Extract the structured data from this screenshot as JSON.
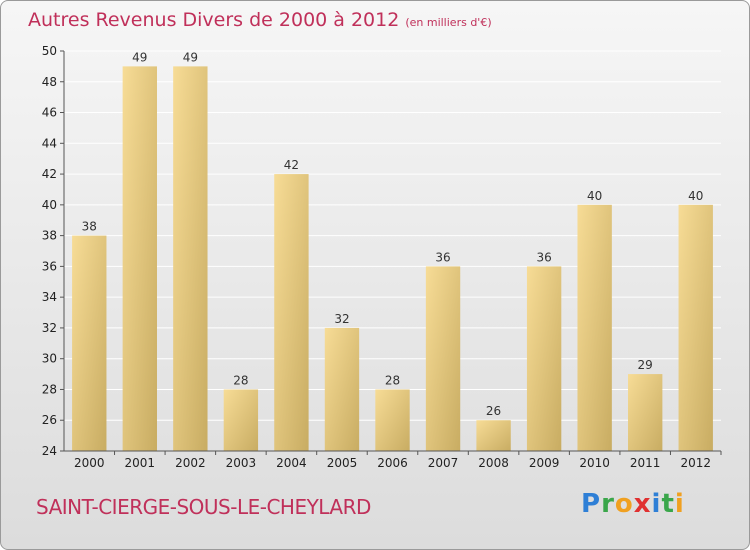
{
  "header": {
    "title": "Autres Revenus Divers de 2000 à 2012",
    "subtitle": "(en milliers d'€)"
  },
  "footer": {
    "commune": "SAINT-CIERGE-SOUS-LE-CHEYLARD",
    "logo_letters": [
      "P",
      "r",
      "o",
      "x",
      "i",
      "t",
      "i"
    ],
    "logo_colors": [
      "#2e7fd6",
      "#3aa64a",
      "#f0a020",
      "#e03030",
      "#2e7fd6",
      "#3aa64a",
      "#f0a020"
    ]
  },
  "colors": {
    "title": "#c0305a",
    "bar_light": "#f7dc96",
    "bar_dark": "#c8ac62",
    "grid": "#ffffff",
    "axis": "#555555"
  },
  "chart_data": {
    "type": "bar",
    "categories": [
      "2000",
      "2001",
      "2002",
      "2003",
      "2004",
      "2005",
      "2006",
      "2007",
      "2008",
      "2009",
      "2010",
      "2011",
      "2012"
    ],
    "values": [
      38,
      49,
      49,
      28,
      42,
      32,
      28,
      36,
      26,
      36,
      40,
      29,
      40
    ],
    "title": "Autres Revenus Divers de 2000 à 2012",
    "ylim": [
      24,
      50
    ],
    "yticks": [
      24,
      26,
      28,
      30,
      32,
      34,
      36,
      38,
      40,
      42,
      44,
      46,
      48,
      50
    ],
    "grid": true,
    "legend": "none"
  }
}
